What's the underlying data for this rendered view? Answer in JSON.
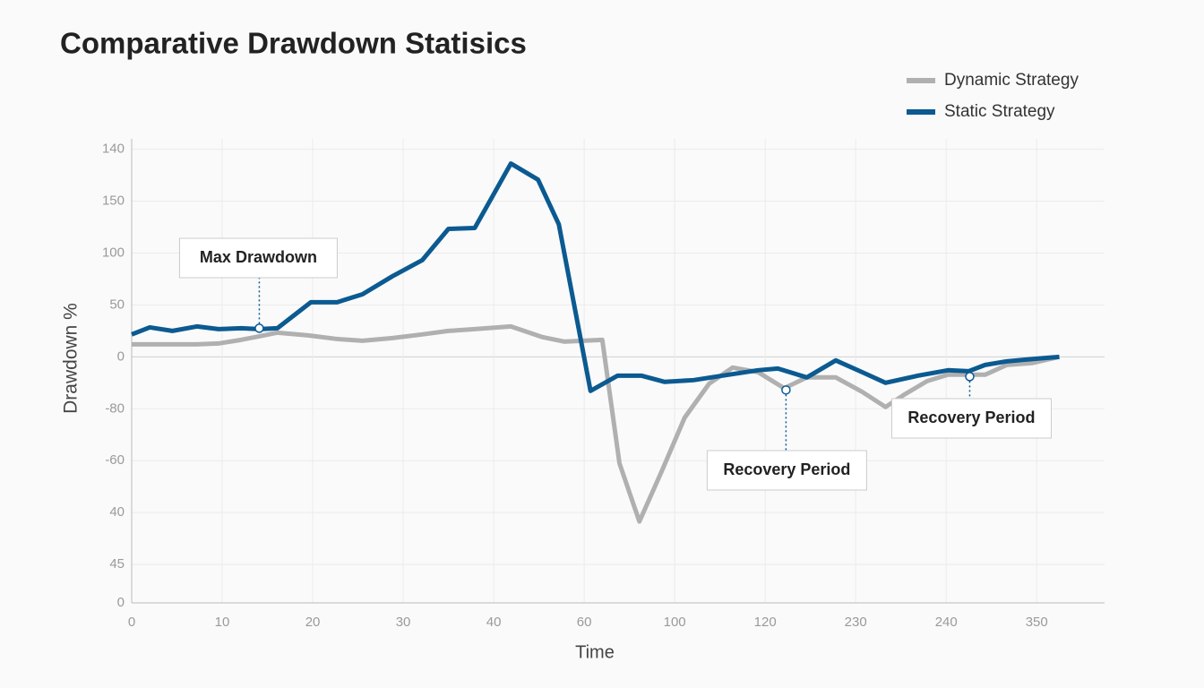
{
  "chart_data": {
    "type": "line",
    "title": "Comparative Drawdown Statisics",
    "x_label": "Time",
    "y_label": "Drawdown %",
    "xlim": [
      0,
      107.5
    ],
    "xticks": [
      0,
      10,
      20,
      30,
      40,
      {
        "value": 50,
        "label": "60"
      },
      {
        "value": 60,
        "label": "100"
      },
      {
        "value": 70,
        "label": "120"
      },
      {
        "value": 80,
        "label": "230"
      },
      {
        "value": 90,
        "label": "240"
      },
      {
        "value": 100,
        "label": "350"
      }
    ],
    "ylim": [
      -237,
      210
    ],
    "yticks": [
      {
        "value": 200,
        "label": "140"
      },
      150,
      100,
      50,
      0,
      {
        "value": -50,
        "label": "-80"
      },
      {
        "value": -100,
        "label": "-60"
      },
      {
        "value": -150,
        "label": "40"
      },
      {
        "value": -200,
        "label": "45"
      },
      {
        "value": -237,
        "label": "0"
      }
    ],
    "grid": true,
    "legend": "top-right",
    "series": [
      {
        "name": "Dynamic Strategy",
        "color": "#b0b0b0",
        "x": [
          0,
          3.2,
          7.2,
          9.6,
          12.1,
          14.1,
          16.1,
          19.5,
          22.7,
          25.5,
          28.8,
          32.1,
          35.0,
          37.9,
          41.9,
          45.4,
          47.8,
          52.0,
          53.9,
          56.1,
          58.6,
          61.1,
          63.8,
          66.4,
          69.2,
          72.1,
          74.6,
          77.8,
          80.7,
          83.3,
          85.4,
          87.9,
          90.2,
          92.5,
          94.3,
          96.7,
          99.5,
          102.5
        ],
        "values": [
          12.1,
          12.1,
          12.1,
          12.9,
          16.4,
          19.8,
          23.3,
          20.7,
          17.2,
          15.5,
          18.1,
          21.6,
          25.0,
          26.7,
          29.3,
          19.0,
          14.7,
          16.4,
          -102.6,
          -158.6,
          -109.5,
          -58.6,
          -25.9,
          -10.3,
          -14.7,
          -30.2,
          -19.8,
          -19.8,
          -33.6,
          -48.3,
          -36.2,
          -23.3,
          -17.2,
          -17.2,
          -17.2,
          -7.8,
          -6.0,
          0
        ]
      },
      {
        "name": "Static Strategy",
        "color": "#0b5a91",
        "x": [
          0,
          2,
          4.5,
          7.2,
          9.6,
          12.1,
          14.1,
          16.1,
          19.8,
          22.7,
          25.5,
          28.8,
          32.1,
          35.0,
          37.9,
          41.9,
          44.9,
          47.2,
          50.7,
          53.7,
          56.3,
          58.9,
          62.1,
          65.3,
          69.2,
          71.4,
          74.6,
          77.8,
          80.7,
          83.3,
          86.9,
          90.2,
          92.5,
          94.3,
          96.7,
          100.0,
          102.5
        ],
        "values": [
          21.6,
          28.4,
          25.0,
          29.3,
          26.7,
          27.6,
          26.7,
          27.6,
          52.6,
          52.6,
          60.3,
          77.6,
          93.1,
          123.3,
          124.1,
          186.2,
          170.7,
          127.6,
          -32.8,
          -18.1,
          -18.1,
          -24.1,
          -22.4,
          -18.1,
          -12.9,
          -11.2,
          -19.8,
          -3.4,
          -14.7,
          -25.0,
          -18.1,
          -12.9,
          -13.8,
          -7.8,
          -4.3,
          -1.7,
          0
        ]
      }
    ],
    "annotations": [
      {
        "text": "Max Drawdown",
        "x": 14.1,
        "y": 27.6
      },
      {
        "text": "Recovery Period",
        "x": 72.3,
        "y": -31.9
      },
      {
        "text": "Recovery Period",
        "x": 92.6,
        "y": -19.0
      }
    ]
  }
}
